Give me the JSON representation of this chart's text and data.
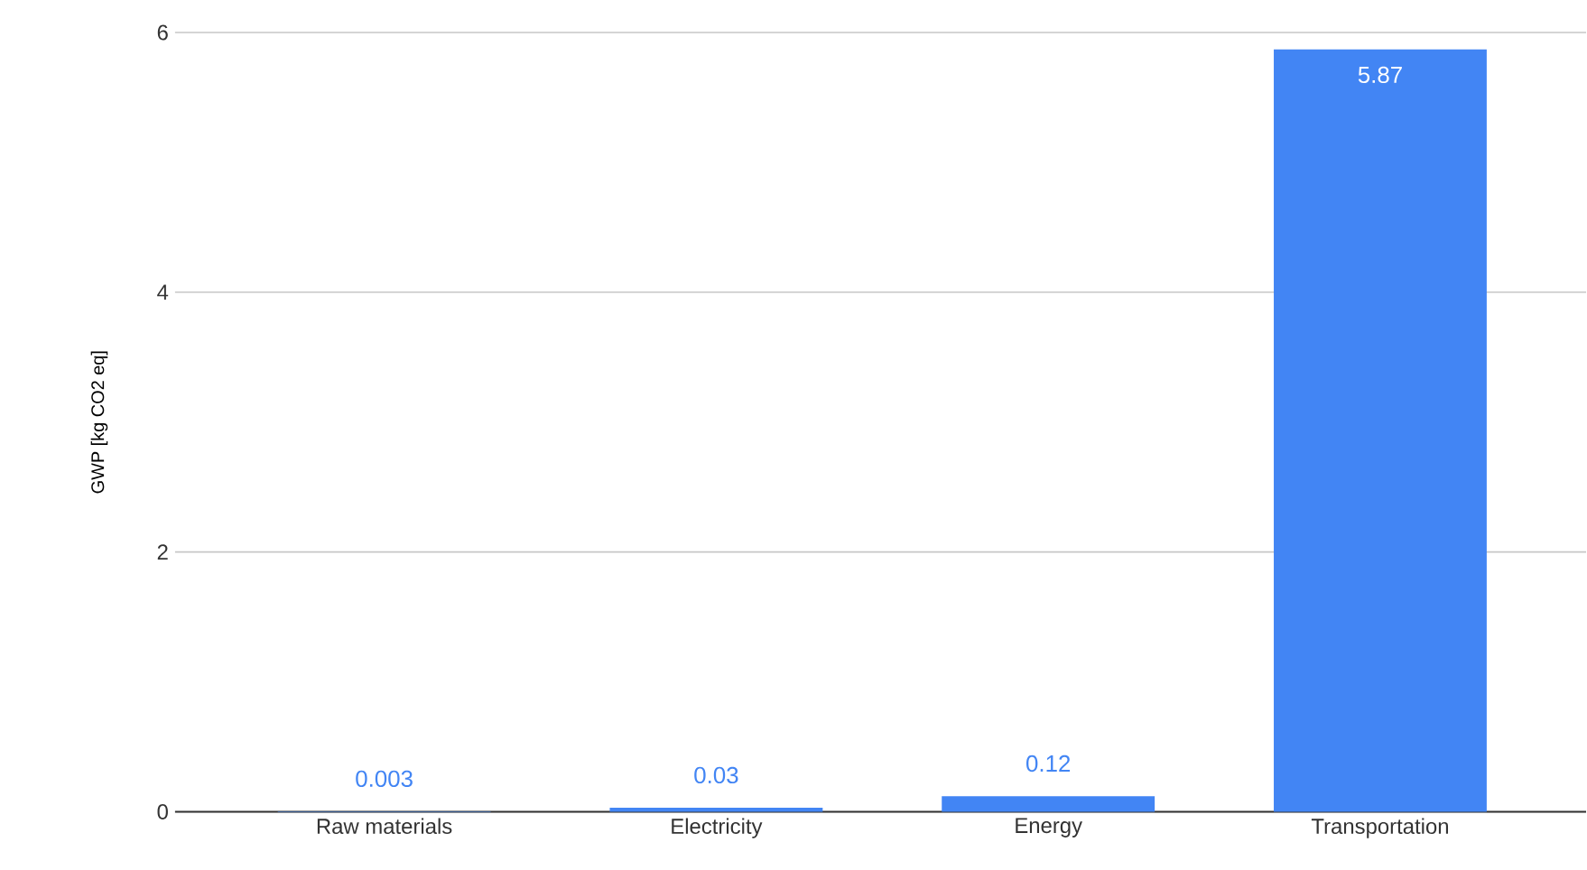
{
  "chart_data": {
    "type": "bar",
    "ylabel": "GWP [kg CO2 eq]",
    "categories": [
      "Raw materials",
      "Electricity",
      "Energy",
      "Transportation"
    ],
    "values": [
      0.003,
      0.03,
      0.12,
      5.87
    ],
    "color": "#4285f4",
    "ylim": [
      0,
      6
    ],
    "yticks": [
      0,
      2,
      4,
      6
    ],
    "grid": "y",
    "data_labels": true
  }
}
